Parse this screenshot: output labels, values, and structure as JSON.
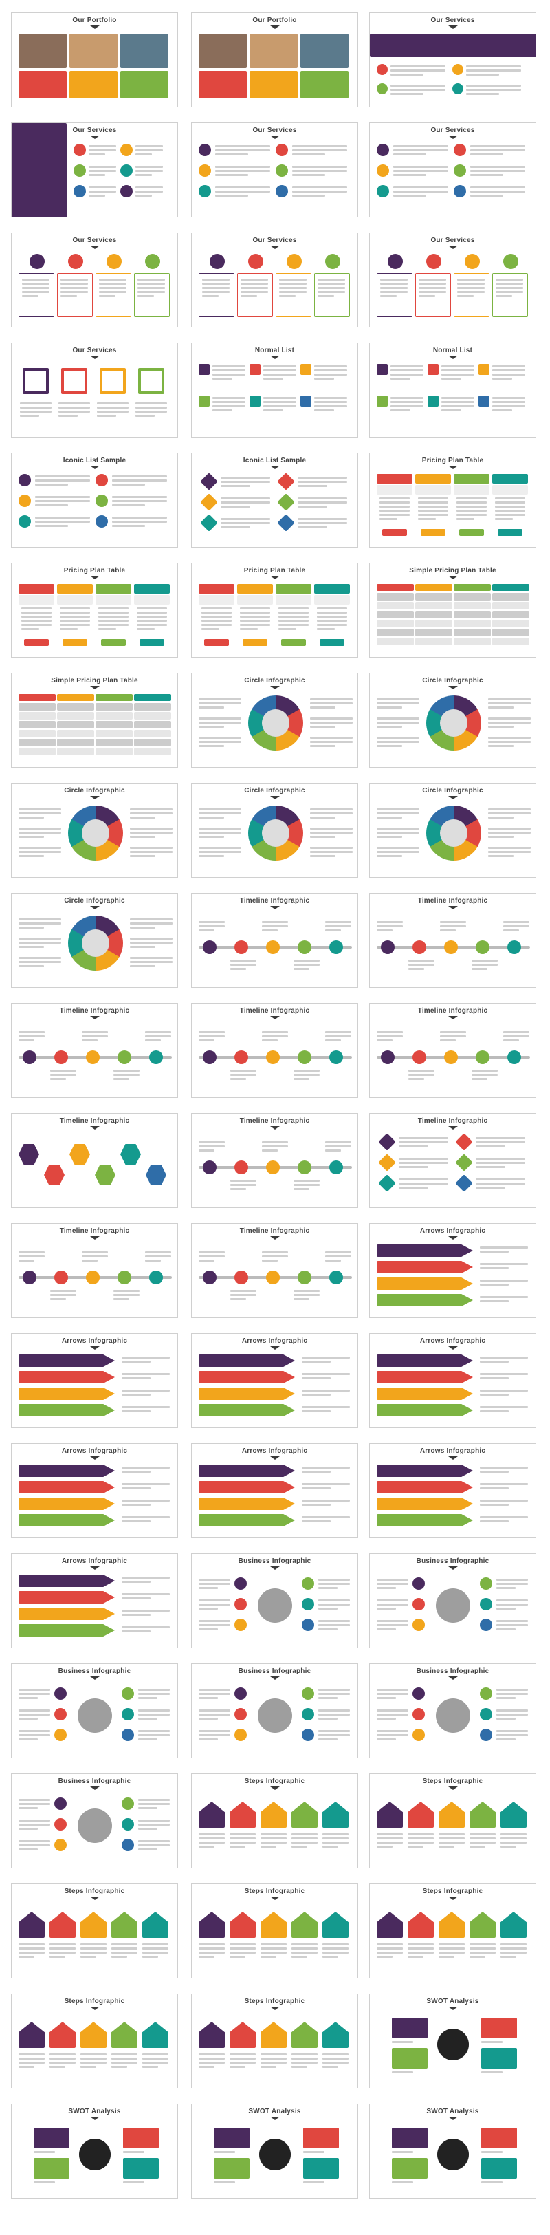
{
  "palette": {
    "purple": "#4a2a5e",
    "red": "#e0473f",
    "orange": "#f2a51c",
    "green": "#7cb342",
    "teal": "#149a8e",
    "blue": "#2f6da8",
    "dark": "#3c3c3c",
    "gray": "#9e9e9e"
  },
  "slides": [
    {
      "title": "Our Portfolio",
      "layout": "portfolio"
    },
    {
      "title": "Our Portfolio",
      "layout": "portfolio"
    },
    {
      "title": "Our Services",
      "layout": "services-banner"
    },
    {
      "title": "Our Services",
      "layout": "services-dark"
    },
    {
      "title": "Our Services",
      "layout": "icon-list"
    },
    {
      "title": "Our Services",
      "layout": "icon-list"
    },
    {
      "title": "Our Services",
      "layout": "columns"
    },
    {
      "title": "Our Services",
      "layout": "columns"
    },
    {
      "title": "Our Services",
      "layout": "columns"
    },
    {
      "title": "Our Services",
      "layout": "four-squares"
    },
    {
      "title": "Normal List",
      "layout": "numbered"
    },
    {
      "title": "Normal List",
      "layout": "numbered"
    },
    {
      "title": "Iconic List Sample",
      "layout": "icon-list"
    },
    {
      "title": "Iconic List Sample",
      "layout": "diamonds"
    },
    {
      "title": "Pricing Plan Table",
      "layout": "pricing"
    },
    {
      "title": "Pricing Plan Table",
      "layout": "pricing"
    },
    {
      "title": "Pricing Plan Table",
      "layout": "pricing"
    },
    {
      "title": "Simple Pricing Plan Table",
      "layout": "table"
    },
    {
      "title": "Simple Pricing Plan Table",
      "layout": "table"
    },
    {
      "title": "Circle Infographic",
      "layout": "circle"
    },
    {
      "title": "Circle Infographic",
      "layout": "circle"
    },
    {
      "title": "Circle Infographic",
      "layout": "circle"
    },
    {
      "title": "Circle Infographic",
      "layout": "circle"
    },
    {
      "title": "Circle Infographic",
      "layout": "circle"
    },
    {
      "title": "Circle Infographic",
      "layout": "circle"
    },
    {
      "title": "Timeline Infographic",
      "layout": "timeline"
    },
    {
      "title": "Timeline Infographic",
      "layout": "timeline"
    },
    {
      "title": "Timeline Infographic",
      "layout": "timeline"
    },
    {
      "title": "Timeline Infographic",
      "layout": "timeline"
    },
    {
      "title": "Timeline Infographic",
      "layout": "timeline"
    },
    {
      "title": "Timeline Infographic",
      "layout": "hexagons"
    },
    {
      "title": "Timeline Infographic",
      "layout": "timeline"
    },
    {
      "title": "Timeline Infographic",
      "layout": "diamonds"
    },
    {
      "title": "Timeline Infographic",
      "layout": "timeline"
    },
    {
      "title": "Timeline Infographic",
      "layout": "timeline"
    },
    {
      "title": "Arrows Infographic",
      "layout": "arrows"
    },
    {
      "title": "Arrows Infographic",
      "layout": "arrows"
    },
    {
      "title": "Arrows Infographic",
      "layout": "arrows"
    },
    {
      "title": "Arrows Infographic",
      "layout": "arrows"
    },
    {
      "title": "Arrows Infographic",
      "layout": "arrows"
    },
    {
      "title": "Arrows Infographic",
      "layout": "arrows"
    },
    {
      "title": "Arrows Infographic",
      "layout": "arrows"
    },
    {
      "title": "Arrows Infographic",
      "layout": "arrows"
    },
    {
      "title": "Business Infographic",
      "layout": "business"
    },
    {
      "title": "Business Infographic",
      "layout": "business"
    },
    {
      "title": "Business Infographic",
      "layout": "business"
    },
    {
      "title": "Business Infographic",
      "layout": "business"
    },
    {
      "title": "Business Infographic",
      "layout": "business"
    },
    {
      "title": "Business Infographic",
      "layout": "business"
    },
    {
      "title": "Steps Infographic",
      "layout": "steps"
    },
    {
      "title": "Steps Infographic",
      "layout": "steps"
    },
    {
      "title": "Steps Infographic",
      "layout": "steps"
    },
    {
      "title": "Steps Infographic",
      "layout": "steps"
    },
    {
      "title": "Steps Infographic",
      "layout": "steps"
    },
    {
      "title": "Steps Infographic",
      "layout": "steps"
    },
    {
      "title": "Steps Infographic",
      "layout": "steps"
    },
    {
      "title": "SWOT Analysis",
      "layout": "swot"
    },
    {
      "title": "SWOT Analysis",
      "layout": "swot"
    },
    {
      "title": "SWOT Analysis",
      "layout": "swot"
    },
    {
      "title": "SWOT Analysis",
      "layout": "swot"
    }
  ]
}
